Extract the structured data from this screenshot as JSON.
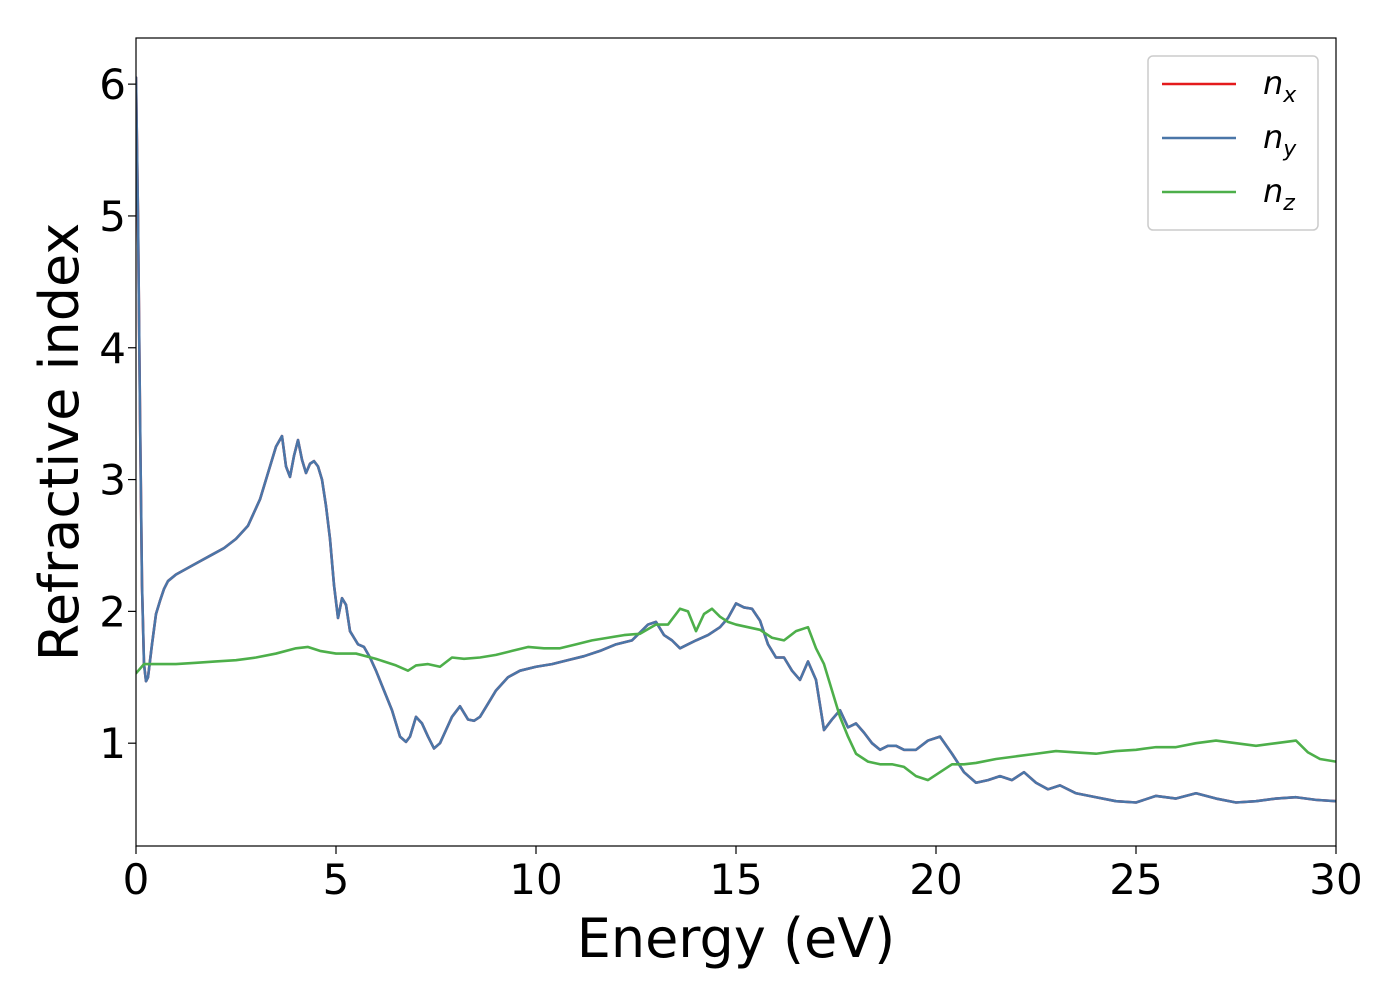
{
  "chart_data": {
    "type": "line",
    "title": "",
    "xlabel": "Energy (eV)",
    "ylabel": "Refractive index",
    "xlim": [
      0,
      30
    ],
    "ylim": [
      0.22,
      6.35
    ],
    "xticks": [
      0,
      5,
      10,
      15,
      20,
      25,
      30
    ],
    "yticks": [
      1,
      2,
      3,
      4,
      5,
      6
    ],
    "grid": false,
    "legend_position": "top-right",
    "series": [
      {
        "name": "n",
        "sub": "x",
        "color": "#e41a1c",
        "x": [
          0,
          0.05,
          0.1,
          0.15,
          0.2,
          0.25,
          0.3,
          0.4,
          0.5,
          0.6,
          0.7,
          0.8,
          1.0,
          1.3,
          1.6,
          1.9,
          2.2,
          2.5,
          2.8,
          3.1,
          3.3,
          3.5,
          3.65,
          3.75,
          3.85,
          3.95,
          4.05,
          4.15,
          4.25,
          4.35,
          4.45,
          4.55,
          4.65,
          4.75,
          4.85,
          4.95,
          5.05,
          5.15,
          5.25,
          5.35,
          5.45,
          5.55,
          5.7,
          5.85,
          6.0,
          6.2,
          6.4,
          6.6,
          6.75,
          6.85,
          7.0,
          7.15,
          7.3,
          7.45,
          7.6,
          7.75,
          7.9,
          8.1,
          8.3,
          8.45,
          8.6,
          8.8,
          9.0,
          9.3,
          9.6,
          10.0,
          10.4,
          10.8,
          11.2,
          11.6,
          12.0,
          12.4,
          12.8,
          13.0,
          13.2,
          13.4,
          13.6,
          13.8,
          14.0,
          14.3,
          14.6,
          14.8,
          15.0,
          15.2,
          15.4,
          15.6,
          15.8,
          16.0,
          16.2,
          16.4,
          16.6,
          16.8,
          17.0,
          17.2,
          17.4,
          17.6,
          17.8,
          18.0,
          18.2,
          18.4,
          18.6,
          18.8,
          19.0,
          19.2,
          19.5,
          19.8,
          20.1,
          20.4,
          20.7,
          21.0,
          21.3,
          21.6,
          21.9,
          22.2,
          22.5,
          22.8,
          23.1,
          23.5,
          24.0,
          24.5,
          25.0,
          25.5,
          26.0,
          26.5,
          27.0,
          27.5,
          28.0,
          28.5,
          29.0,
          29.5,
          30.0
        ],
        "y": [
          6.05,
          5.0,
          3.5,
          2.2,
          1.6,
          1.47,
          1.5,
          1.75,
          1.98,
          2.08,
          2.17,
          2.23,
          2.28,
          2.33,
          2.38,
          2.43,
          2.48,
          2.55,
          2.65,
          2.85,
          3.05,
          3.25,
          3.33,
          3.1,
          3.02,
          3.18,
          3.3,
          3.15,
          3.05,
          3.12,
          3.14,
          3.1,
          3.0,
          2.8,
          2.55,
          2.2,
          1.95,
          2.1,
          2.05,
          1.85,
          1.8,
          1.75,
          1.73,
          1.65,
          1.55,
          1.4,
          1.25,
          1.05,
          1.01,
          1.05,
          1.2,
          1.15,
          1.05,
          0.96,
          1.0,
          1.1,
          1.2,
          1.28,
          1.18,
          1.17,
          1.2,
          1.3,
          1.4,
          1.5,
          1.55,
          1.58,
          1.6,
          1.63,
          1.66,
          1.7,
          1.75,
          1.78,
          1.9,
          1.92,
          1.82,
          1.78,
          1.72,
          1.75,
          1.78,
          1.82,
          1.88,
          1.95,
          2.06,
          2.03,
          2.02,
          1.93,
          1.75,
          1.65,
          1.65,
          1.55,
          1.48,
          1.62,
          1.48,
          1.1,
          1.18,
          1.25,
          1.12,
          1.15,
          1.08,
          1.0,
          0.95,
          0.98,
          0.98,
          0.95,
          0.95,
          1.02,
          1.05,
          0.92,
          0.78,
          0.7,
          0.72,
          0.75,
          0.72,
          0.78,
          0.7,
          0.65,
          0.68,
          0.62,
          0.59,
          0.56,
          0.55,
          0.6,
          0.58,
          0.62,
          0.58,
          0.55,
          0.56,
          0.58,
          0.59,
          0.57,
          0.56
        ]
      },
      {
        "name": "n",
        "sub": "y",
        "color": "#4a76a8",
        "x": [
          0,
          0.05,
          0.1,
          0.15,
          0.2,
          0.25,
          0.3,
          0.4,
          0.5,
          0.6,
          0.7,
          0.8,
          1.0,
          1.3,
          1.6,
          1.9,
          2.2,
          2.5,
          2.8,
          3.1,
          3.3,
          3.5,
          3.65,
          3.75,
          3.85,
          3.95,
          4.05,
          4.15,
          4.25,
          4.35,
          4.45,
          4.55,
          4.65,
          4.75,
          4.85,
          4.95,
          5.05,
          5.15,
          5.25,
          5.35,
          5.45,
          5.55,
          5.7,
          5.85,
          6.0,
          6.2,
          6.4,
          6.6,
          6.75,
          6.85,
          7.0,
          7.15,
          7.3,
          7.45,
          7.6,
          7.75,
          7.9,
          8.1,
          8.3,
          8.45,
          8.6,
          8.8,
          9.0,
          9.3,
          9.6,
          10.0,
          10.4,
          10.8,
          11.2,
          11.6,
          12.0,
          12.4,
          12.8,
          13.0,
          13.2,
          13.4,
          13.6,
          13.8,
          14.0,
          14.3,
          14.6,
          14.8,
          15.0,
          15.2,
          15.4,
          15.6,
          15.8,
          16.0,
          16.2,
          16.4,
          16.6,
          16.8,
          17.0,
          17.2,
          17.4,
          17.6,
          17.8,
          18.0,
          18.2,
          18.4,
          18.6,
          18.8,
          19.0,
          19.2,
          19.5,
          19.8,
          20.1,
          20.4,
          20.7,
          21.0,
          21.3,
          21.6,
          21.9,
          22.2,
          22.5,
          22.8,
          23.1,
          23.5,
          24.0,
          24.5,
          25.0,
          25.5,
          26.0,
          26.5,
          27.0,
          27.5,
          28.0,
          28.5,
          29.0,
          29.5,
          30.0
        ],
        "y": [
          6.05,
          5.0,
          3.5,
          2.2,
          1.6,
          1.47,
          1.5,
          1.75,
          1.98,
          2.08,
          2.17,
          2.23,
          2.28,
          2.33,
          2.38,
          2.43,
          2.48,
          2.55,
          2.65,
          2.85,
          3.05,
          3.25,
          3.33,
          3.1,
          3.02,
          3.18,
          3.3,
          3.15,
          3.05,
          3.12,
          3.14,
          3.1,
          3.0,
          2.8,
          2.55,
          2.2,
          1.95,
          2.1,
          2.05,
          1.85,
          1.8,
          1.75,
          1.73,
          1.65,
          1.55,
          1.4,
          1.25,
          1.05,
          1.01,
          1.05,
          1.2,
          1.15,
          1.05,
          0.96,
          1.0,
          1.1,
          1.2,
          1.28,
          1.18,
          1.17,
          1.2,
          1.3,
          1.4,
          1.5,
          1.55,
          1.58,
          1.6,
          1.63,
          1.66,
          1.7,
          1.75,
          1.78,
          1.9,
          1.92,
          1.82,
          1.78,
          1.72,
          1.75,
          1.78,
          1.82,
          1.88,
          1.95,
          2.06,
          2.03,
          2.02,
          1.93,
          1.75,
          1.65,
          1.65,
          1.55,
          1.48,
          1.62,
          1.48,
          1.1,
          1.18,
          1.25,
          1.12,
          1.15,
          1.08,
          1.0,
          0.95,
          0.98,
          0.98,
          0.95,
          0.95,
          1.02,
          1.05,
          0.92,
          0.78,
          0.7,
          0.72,
          0.75,
          0.72,
          0.78,
          0.7,
          0.65,
          0.68,
          0.62,
          0.59,
          0.56,
          0.55,
          0.6,
          0.58,
          0.62,
          0.58,
          0.55,
          0.56,
          0.58,
          0.59,
          0.57,
          0.56
        ]
      },
      {
        "name": "n",
        "sub": "z",
        "color": "#4daf4a",
        "x": [
          0,
          0.2,
          0.5,
          1.0,
          1.5,
          2.0,
          2.5,
          3.0,
          3.5,
          4.0,
          4.3,
          4.6,
          5.0,
          5.5,
          6.0,
          6.5,
          6.8,
          7.0,
          7.3,
          7.6,
          7.9,
          8.2,
          8.6,
          9.0,
          9.4,
          9.8,
          10.2,
          10.6,
          11.0,
          11.4,
          11.8,
          12.2,
          12.6,
          13.0,
          13.3,
          13.6,
          13.8,
          14.0,
          14.2,
          14.4,
          14.6,
          14.8,
          15.0,
          15.3,
          15.6,
          15.9,
          16.2,
          16.5,
          16.8,
          17.0,
          17.2,
          17.4,
          17.6,
          17.8,
          18.0,
          18.3,
          18.6,
          18.9,
          19.2,
          19.5,
          19.8,
          20.1,
          20.4,
          20.7,
          21.0,
          21.5,
          22.0,
          22.5,
          23.0,
          23.5,
          24.0,
          24.5,
          25.0,
          25.5,
          26.0,
          26.5,
          27.0,
          27.5,
          28.0,
          28.5,
          29.0,
          29.3,
          29.6,
          30.0
        ],
        "y": [
          1.53,
          1.6,
          1.6,
          1.6,
          1.61,
          1.62,
          1.63,
          1.65,
          1.68,
          1.72,
          1.73,
          1.7,
          1.68,
          1.68,
          1.64,
          1.59,
          1.55,
          1.59,
          1.6,
          1.58,
          1.65,
          1.64,
          1.65,
          1.67,
          1.7,
          1.73,
          1.72,
          1.72,
          1.75,
          1.78,
          1.8,
          1.82,
          1.83,
          1.9,
          1.9,
          2.02,
          2.0,
          1.85,
          1.98,
          2.02,
          1.96,
          1.92,
          1.9,
          1.88,
          1.86,
          1.8,
          1.78,
          1.85,
          1.88,
          1.72,
          1.6,
          1.4,
          1.2,
          1.05,
          0.92,
          0.86,
          0.84,
          0.84,
          0.82,
          0.75,
          0.72,
          0.78,
          0.84,
          0.84,
          0.85,
          0.88,
          0.9,
          0.92,
          0.94,
          0.93,
          0.92,
          0.94,
          0.95,
          0.97,
          0.97,
          1.0,
          1.02,
          1.0,
          0.98,
          1.0,
          1.02,
          0.93,
          0.88,
          0.86
        ]
      }
    ]
  }
}
